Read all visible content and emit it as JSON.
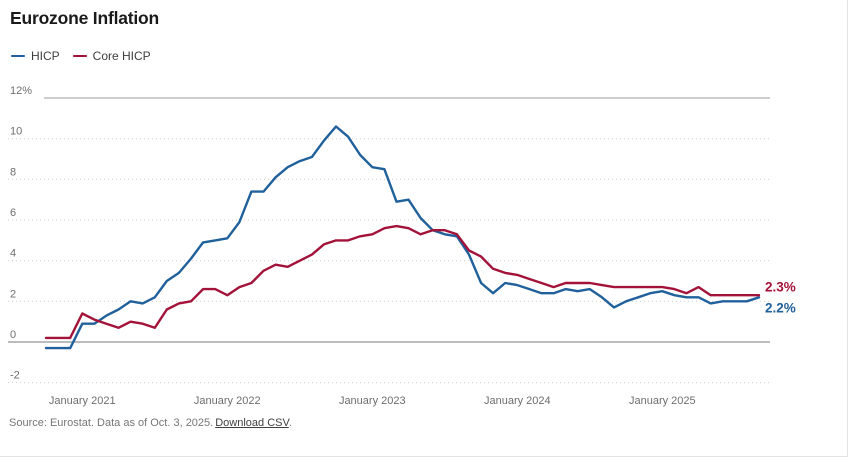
{
  "header": {
    "title": "Eurozone Inflation"
  },
  "footer": {
    "source_text": "Source: Eurostat. Data as of Oct. 3, 2025.",
    "link_label": "Download CSV",
    "suffix": "."
  },
  "chart_data": {
    "type": "line",
    "title": "Eurozone Inflation",
    "xlabel": "",
    "ylabel": "",
    "ylim": [
      -2,
      12
    ],
    "grid": "horizontal-dotted",
    "legend_position": "top-left",
    "x": [
      "2020-10",
      "2020-11",
      "2020-12",
      "2021-01",
      "2021-02",
      "2021-03",
      "2021-04",
      "2021-05",
      "2021-06",
      "2021-07",
      "2021-08",
      "2021-09",
      "2021-10",
      "2021-11",
      "2021-12",
      "2022-01",
      "2022-02",
      "2022-03",
      "2022-04",
      "2022-05",
      "2022-06",
      "2022-07",
      "2022-08",
      "2022-09",
      "2022-10",
      "2022-11",
      "2022-12",
      "2023-01",
      "2023-02",
      "2023-03",
      "2023-04",
      "2023-05",
      "2023-06",
      "2023-07",
      "2023-08",
      "2023-09",
      "2023-10",
      "2023-11",
      "2023-12",
      "2024-01",
      "2024-02",
      "2024-03",
      "2024-04",
      "2024-05",
      "2024-06",
      "2024-07",
      "2024-08",
      "2024-09",
      "2024-10",
      "2024-11",
      "2024-12",
      "2025-01",
      "2025-02",
      "2025-03",
      "2025-04",
      "2025-05",
      "2025-06",
      "2025-07",
      "2025-08",
      "2025-09"
    ],
    "series": [
      {
        "name": "HICP",
        "color": "#20609b",
        "values": [
          -0.3,
          -0.3,
          -0.3,
          0.9,
          0.9,
          1.3,
          1.6,
          2.0,
          1.9,
          2.2,
          3.0,
          3.4,
          4.1,
          4.9,
          5.0,
          5.1,
          5.9,
          7.4,
          7.4,
          8.1,
          8.6,
          8.9,
          9.1,
          9.9,
          10.6,
          10.1,
          9.2,
          8.6,
          8.5,
          6.9,
          7.0,
          6.1,
          5.5,
          5.3,
          5.2,
          4.3,
          2.9,
          2.4,
          2.9,
          2.8,
          2.6,
          2.4,
          2.4,
          2.6,
          2.5,
          2.6,
          2.2,
          1.7,
          2.0,
          2.2,
          2.4,
          2.5,
          2.3,
          2.2,
          2.2,
          1.9,
          2.0,
          2.0,
          2.0,
          2.2
        ]
      },
      {
        "name": "Core HICP",
        "color": "#a31238",
        "values": [
          0.2,
          0.2,
          0.2,
          1.4,
          1.1,
          0.9,
          0.7,
          1.0,
          0.9,
          0.7,
          1.6,
          1.9,
          2.0,
          2.6,
          2.6,
          2.3,
          2.7,
          2.9,
          3.5,
          3.8,
          3.7,
          4.0,
          4.3,
          4.8,
          5.0,
          5.0,
          5.2,
          5.3,
          5.6,
          5.7,
          5.6,
          5.3,
          5.5,
          5.5,
          5.3,
          4.5,
          4.2,
          3.6,
          3.4,
          3.3,
          3.1,
          2.9,
          2.7,
          2.9,
          2.9,
          2.9,
          2.8,
          2.7,
          2.7,
          2.7,
          2.7,
          2.7,
          2.6,
          2.4,
          2.7,
          2.3,
          2.3,
          2.3,
          2.3,
          2.3
        ]
      }
    ],
    "y_ticks": [
      {
        "value": 12,
        "label": "12%"
      },
      {
        "value": 10,
        "label": "10"
      },
      {
        "value": 8,
        "label": "8"
      },
      {
        "value": 6,
        "label": "6"
      },
      {
        "value": 4,
        "label": "4"
      },
      {
        "value": 2,
        "label": "2"
      },
      {
        "value": 0,
        "label": "0"
      },
      {
        "value": -2,
        "label": "-2"
      }
    ],
    "x_ticks": [
      {
        "month": "2021-01",
        "label": "January 2021"
      },
      {
        "month": "2022-01",
        "label": "January 2022"
      },
      {
        "month": "2023-01",
        "label": "January 2023"
      },
      {
        "month": "2024-01",
        "label": "January 2024"
      },
      {
        "month": "2025-01",
        "label": "January 2025"
      }
    ],
    "end_labels": [
      {
        "series": "Core HICP",
        "text": "2.3%"
      },
      {
        "series": "HICP",
        "text": "2.2%"
      }
    ]
  }
}
